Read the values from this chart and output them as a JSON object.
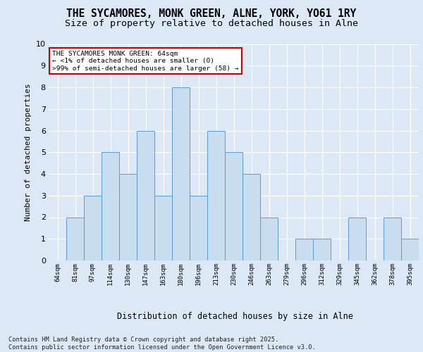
{
  "title": "THE SYCAMORES, MONK GREEN, ALNE, YORK, YO61 1RY",
  "subtitle": "Size of property relative to detached houses in Alne",
  "xlabel": "Distribution of detached houses by size in Alne",
  "ylabel": "Number of detached properties",
  "categories": [
    "64sqm",
    "81sqm",
    "97sqm",
    "114sqm",
    "130sqm",
    "147sqm",
    "163sqm",
    "180sqm",
    "196sqm",
    "213sqm",
    "230sqm",
    "246sqm",
    "263sqm",
    "279sqm",
    "296sqm",
    "312sqm",
    "329sqm",
    "345sqm",
    "362sqm",
    "378sqm",
    "395sqm"
  ],
  "values": [
    0,
    2,
    3,
    5,
    4,
    6,
    3,
    8,
    3,
    6,
    5,
    4,
    2,
    0,
    1,
    1,
    0,
    2,
    0,
    2,
    1
  ],
  "bar_color": "#c9ddf0",
  "bar_edge_color": "#5b9bd5",
  "annotation_box_text": "THE SYCAMORES MONK GREEN: 64sqm\n← <1% of detached houses are smaller (0)\n>99% of semi-detached houses are larger (58) →",
  "annotation_box_edge_color": "#cc0000",
  "annotation_box_facecolor": "#ffffff",
  "footer_text": "Contains HM Land Registry data © Crown copyright and database right 2025.\nContains public sector information licensed under the Open Government Licence v3.0.",
  "ylim": [
    0,
    10
  ],
  "yticks": [
    0,
    1,
    2,
    3,
    4,
    5,
    6,
    7,
    8,
    9,
    10
  ],
  "background_color": "#dce8f5",
  "plot_background_color": "#dce8f5",
  "grid_color": "#ffffff",
  "title_fontsize": 10.5,
  "subtitle_fontsize": 9.5
}
